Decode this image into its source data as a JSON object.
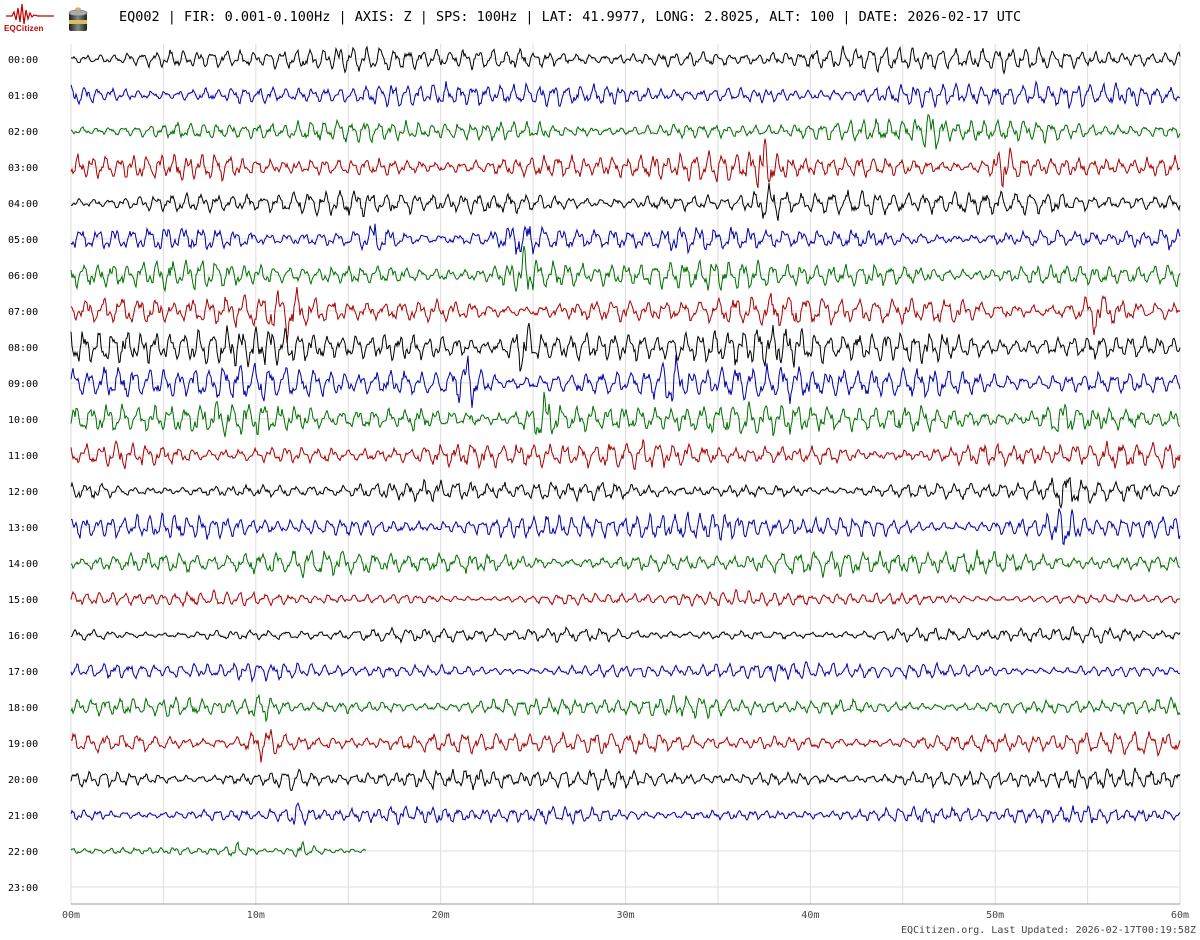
{
  "header": {
    "text": "EQ002 | FIR: 0.001-0.100Hz | AXIS: Z | SPS: 100Hz | LAT: 41.9977, LONG: 2.8025, ALT: 100 | DATE: 2026-02-17 UTC"
  },
  "logo": {
    "text": "EQCitizen",
    "icon": "seismograph-logo-icon"
  },
  "sensor": {
    "icon": "sensor-device-icon"
  },
  "footer": {
    "text": "EQCitizen.org. Last Updated: 2026-02-17T00:19:58Z"
  },
  "colors": {
    "black": "#000000",
    "blue": "#0000a8",
    "green": "#006e00",
    "red": "#a80000",
    "grid": "#dddddd"
  },
  "chart_data": {
    "type": "line",
    "subtype": "helicorder",
    "x_ticks": [
      "00m",
      "10m",
      "20m",
      "30m",
      "40m",
      "50m",
      "60m"
    ],
    "xlim": [
      0,
      60
    ],
    "rows": [
      {
        "label": "00:00",
        "color": "black",
        "amp": 1.0,
        "end": 60
      },
      {
        "label": "01:00",
        "color": "blue",
        "amp": 1.0,
        "end": 60
      },
      {
        "label": "02:00",
        "color": "green",
        "amp": 0.9,
        "end": 60
      },
      {
        "label": "03:00",
        "color": "red",
        "amp": 1.1,
        "end": 60
      },
      {
        "label": "04:00",
        "color": "black",
        "amp": 1.0,
        "end": 60
      },
      {
        "label": "05:00",
        "color": "blue",
        "amp": 1.0,
        "end": 60
      },
      {
        "label": "06:00",
        "color": "green",
        "amp": 1.2,
        "end": 60
      },
      {
        "label": "07:00",
        "color": "red",
        "amp": 1.2,
        "end": 60
      },
      {
        "label": "08:00",
        "color": "black",
        "amp": 1.5,
        "end": 60
      },
      {
        "label": "09:00",
        "color": "blue",
        "amp": 1.4,
        "end": 60
      },
      {
        "label": "10:00",
        "color": "green",
        "amp": 1.3,
        "end": 60
      },
      {
        "label": "11:00",
        "color": "red",
        "amp": 1.1,
        "end": 60
      },
      {
        "label": "12:00",
        "color": "black",
        "amp": 0.8,
        "end": 60
      },
      {
        "label": "13:00",
        "color": "blue",
        "amp": 1.1,
        "end": 60
      },
      {
        "label": "14:00",
        "color": "green",
        "amp": 1.0,
        "end": 60
      },
      {
        "label": "15:00",
        "color": "red",
        "amp": 0.6,
        "end": 60
      },
      {
        "label": "16:00",
        "color": "black",
        "amp": 0.6,
        "end": 60
      },
      {
        "label": "17:00",
        "color": "blue",
        "amp": 0.7,
        "end": 60
      },
      {
        "label": "18:00",
        "color": "green",
        "amp": 0.8,
        "end": 60
      },
      {
        "label": "19:00",
        "color": "red",
        "amp": 0.9,
        "end": 60
      },
      {
        "label": "20:00",
        "color": "black",
        "amp": 0.8,
        "end": 60
      },
      {
        "label": "21:00",
        "color": "blue",
        "amp": 0.7,
        "end": 60
      },
      {
        "label": "22:00",
        "color": "green",
        "amp": 0.3,
        "end": 16
      },
      {
        "label": "23:00",
        "color": "black",
        "amp": 0.0,
        "end": 0
      }
    ],
    "events": [
      {
        "row": 2,
        "minute": 46.5,
        "amp": 2.0
      },
      {
        "row": 3,
        "minute": 50.5,
        "amp": 2.2
      },
      {
        "row": 3,
        "minute": 37.5,
        "amp": 2.4
      },
      {
        "row": 4,
        "minute": 37.8,
        "amp": 2.5
      },
      {
        "row": 5,
        "minute": 16.5,
        "amp": 1.6
      },
      {
        "row": 5,
        "minute": 24.5,
        "amp": 1.6
      },
      {
        "row": 6,
        "minute": 24.5,
        "amp": 1.8
      },
      {
        "row": 7,
        "minute": 11.8,
        "amp": 1.8
      },
      {
        "row": 7,
        "minute": 55.5,
        "amp": 1.8
      },
      {
        "row": 8,
        "minute": 24.5,
        "amp": 2.0
      },
      {
        "row": 9,
        "minute": 21.5,
        "amp": 1.8
      },
      {
        "row": 9,
        "minute": 32.5,
        "amp": 1.8
      },
      {
        "row": 10,
        "minute": 25.5,
        "amp": 2.0
      },
      {
        "row": 10,
        "minute": 53.5,
        "amp": 1.6
      },
      {
        "row": 12,
        "minute": 53.7,
        "amp": 2.2
      },
      {
        "row": 13,
        "minute": 53.7,
        "amp": 1.6
      },
      {
        "row": 18,
        "minute": 10.3,
        "amp": 2.0
      },
      {
        "row": 19,
        "minute": 10.5,
        "amp": 2.2
      },
      {
        "row": 20,
        "minute": 12.0,
        "amp": 1.5
      },
      {
        "row": 21,
        "minute": 12.3,
        "amp": 2.0
      },
      {
        "row": 22,
        "minute": 9.0,
        "amp": 3.0
      },
      {
        "row": 22,
        "minute": 12.5,
        "amp": 3.2
      }
    ],
    "grid": true
  }
}
